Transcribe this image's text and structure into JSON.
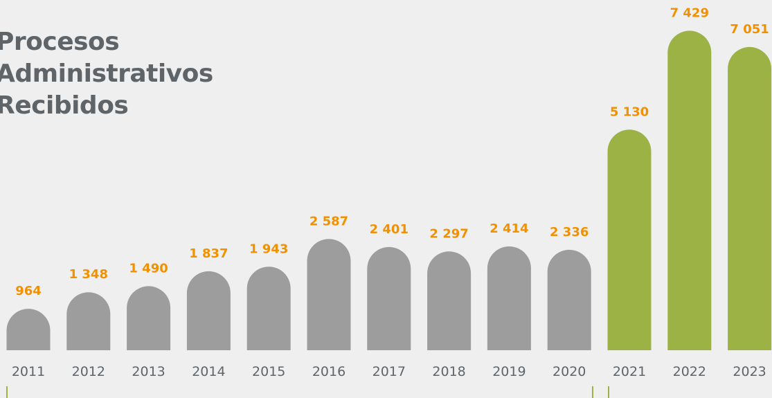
{
  "chart_data": {
    "type": "bar",
    "title_lines": [
      "Procesos",
      "Administrativos",
      "Recibidos"
    ],
    "categories": [
      "2011",
      "2012",
      "2013",
      "2014",
      "2015",
      "2016",
      "2017",
      "2018",
      "2019",
      "2020",
      "2021",
      "2022",
      "2023"
    ],
    "values": [
      964,
      1348,
      1490,
      1837,
      1943,
      2587,
      2401,
      2297,
      2414,
      2336,
      5130,
      7429,
      7051
    ],
    "value_labels": [
      "964",
      "1 348",
      "1 490",
      "1 837",
      "1 943",
      "2 587",
      "2 401",
      "2 297",
      "2 414",
      "2 336",
      "5 130",
      "7 429",
      "7 051"
    ],
    "highlighted_categories": [
      "2021",
      "2022",
      "2023"
    ],
    "colors": {
      "bar": "#9e9d9d",
      "bar_highlight": "#9db245",
      "value_label": "#f29100",
      "axis_label": "#5f6468",
      "bracket": "#9db245",
      "background": "#efefef"
    },
    "ylim": [
      0,
      8000
    ],
    "grid": false,
    "legend": "none"
  }
}
